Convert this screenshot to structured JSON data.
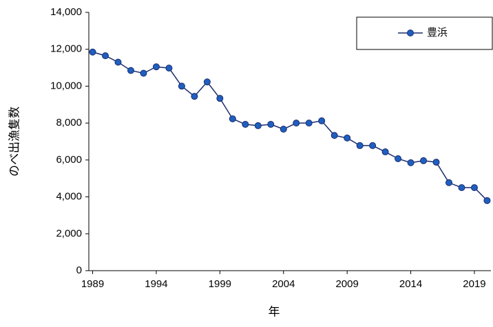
{
  "chart_data": {
    "type": "line",
    "x_label": "年",
    "y_label": "のべ出漁隻数",
    "x": [
      1989,
      1990,
      1991,
      1992,
      1993,
      1994,
      1995,
      1996,
      1997,
      1998,
      1999,
      2000,
      2001,
      2002,
      2003,
      2004,
      2005,
      2006,
      2007,
      2008,
      2009,
      2010,
      2011,
      2012,
      2013,
      2014,
      2015,
      2016,
      2017,
      2018,
      2019,
      2020
    ],
    "series": [
      {
        "name": "豊浜",
        "color": "#1f5fbf",
        "line_color": "#1a2a6c",
        "values": [
          11850,
          11650,
          11300,
          10850,
          10700,
          11050,
          10980,
          10000,
          9450,
          10230,
          9340,
          8230,
          7930,
          7860,
          7930,
          7670,
          8000,
          8000,
          8120,
          7330,
          7190,
          6780,
          6780,
          6440,
          6070,
          5850,
          5960,
          5880,
          4770,
          4500,
          4500,
          3800
        ]
      }
    ],
    "xlim": [
      1988.7,
      2020.3
    ],
    "xticks": [
      1989,
      1994,
      1999,
      2004,
      2009,
      2014,
      2019
    ],
    "ylim": [
      0,
      14000
    ],
    "yticks": [
      0,
      {
        "value": 2000,
        "label": "2,000"
      },
      {
        "value": 4000,
        "label": "4,000"
      },
      {
        "value": 6000,
        "label": "6,000"
      },
      {
        "value": 8000,
        "label": "8,000"
      },
      {
        "value": 10000,
        "label": "10,000"
      },
      {
        "value": 12000,
        "label": "12,000"
      },
      {
        "value": 14000,
        "label": "14,000"
      }
    ],
    "grid": false,
    "legend": "top-right"
  }
}
